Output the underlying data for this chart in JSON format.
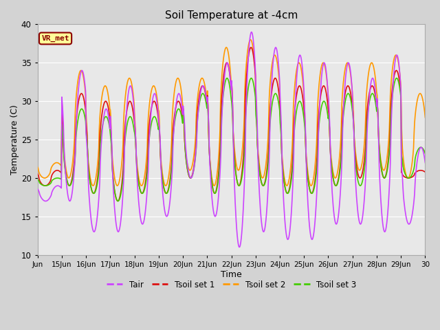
{
  "title": "Soil Temperature at -4cm",
  "xlabel": "Time",
  "ylabel": "Temperature (C)",
  "ylim": [
    10,
    40
  ],
  "xlim_start": 0,
  "xlim_end": 16,
  "xtick_labels": [
    "Jun",
    "15Jun",
    "16Jun",
    "17Jun",
    "18Jun",
    "19Jun",
    "20Jun",
    "21Jun",
    "22Jun",
    "23Jun",
    "24Jun",
    "25Jun",
    "26Jun",
    "27Jun",
    "28Jun",
    "29Jun",
    "30"
  ],
  "xtick_positions": [
    0,
    1,
    2,
    3,
    4,
    5,
    6,
    7,
    8,
    9,
    10,
    11,
    12,
    13,
    14,
    15,
    16
  ],
  "ytick_positions": [
    10,
    15,
    20,
    25,
    30,
    35,
    40
  ],
  "colors": {
    "Tair": "#cc44ff",
    "Tsoil1": "#dd1111",
    "Tsoil2": "#ff9900",
    "Tsoil3": "#44cc00"
  },
  "annotation_text": "VR_met",
  "annotation_box_color": "#ffff99",
  "annotation_text_color": "#8b0000",
  "fig_bg_color": "#d3d3d3",
  "plot_bg_color": "#e8e8e8",
  "grid_color": "#ffffff",
  "linewidth": 1.2
}
